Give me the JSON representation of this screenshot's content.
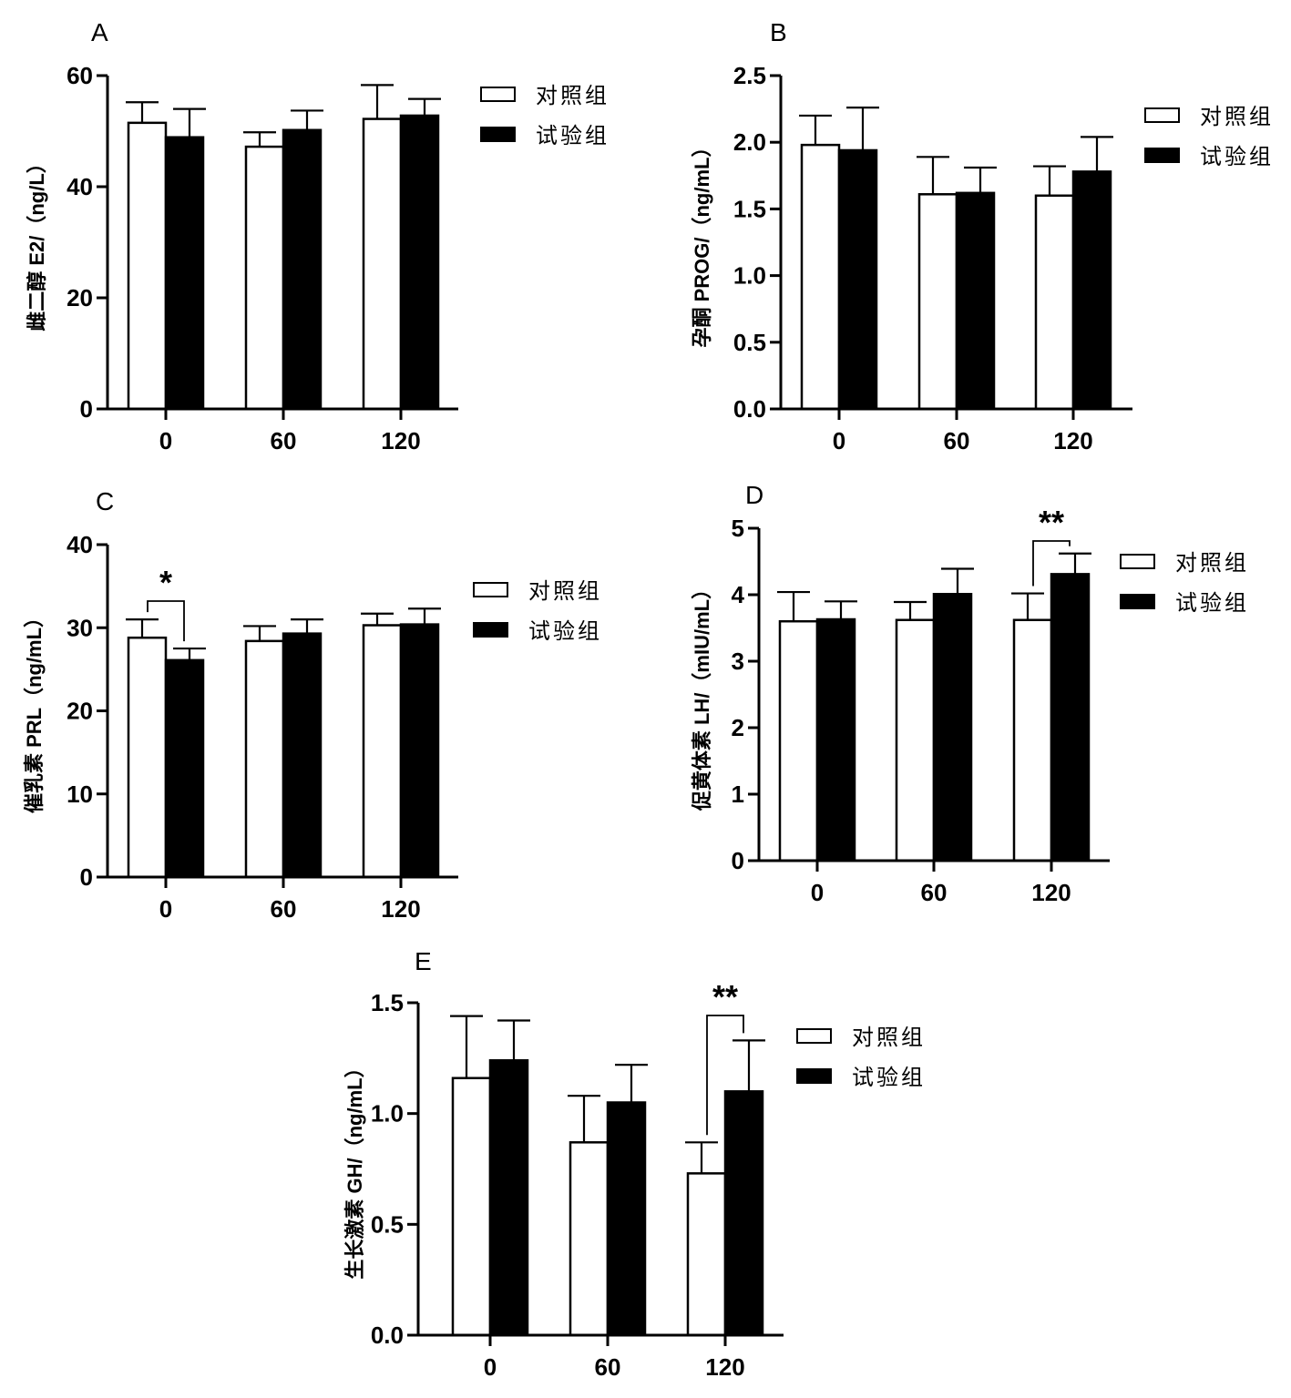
{
  "figure": {
    "legend_labels": [
      "对照组",
      "试验组"
    ]
  },
  "chart_data": [
    {
      "panel": "A",
      "type": "bar",
      "categories": [
        "0",
        "60",
        "120"
      ],
      "ylabel": "雌二醇 E2/（ng/L）",
      "ylim": [
        0,
        60
      ],
      "yticks": [
        "0",
        "20",
        "40",
        "60"
      ],
      "grid": false,
      "legend_position": "top-right",
      "series": [
        {
          "name": "对照组",
          "values": [
            51.5,
            47.2,
            52.2
          ],
          "errors": [
            3.7,
            2.6,
            6.1
          ],
          "color": "#ffffff"
        },
        {
          "name": "试验组",
          "values": [
            48.9,
            50.2,
            52.8
          ],
          "errors": [
            5.1,
            3.5,
            3.0
          ],
          "color": "#000000"
        }
      ],
      "significance": []
    },
    {
      "panel": "B",
      "type": "bar",
      "categories": [
        "0",
        "60",
        "120"
      ],
      "ylabel": "孕酮 PROG/（ng/mL）",
      "ylim": [
        0,
        2.5
      ],
      "yticks": [
        "0.0",
        "0.5",
        "1.0",
        "1.5",
        "2.0",
        "2.5"
      ],
      "grid": false,
      "legend_position": "top-right",
      "series": [
        {
          "name": "对照组",
          "values": [
            1.98,
            1.61,
            1.6
          ],
          "errors": [
            0.22,
            0.28,
            0.22
          ],
          "color": "#ffffff"
        },
        {
          "name": "试验组",
          "values": [
            1.94,
            1.62,
            1.78
          ],
          "errors": [
            0.32,
            0.19,
            0.26
          ],
          "color": "#000000"
        }
      ],
      "significance": []
    },
    {
      "panel": "C",
      "type": "bar",
      "categories": [
        "0",
        "60",
        "120"
      ],
      "ylabel": "催乳素 PRL（ng/mL）",
      "ylim": [
        0,
        40
      ],
      "yticks": [
        "0",
        "10",
        "20",
        "30",
        "40"
      ],
      "grid": false,
      "legend_position": "top-right",
      "series": [
        {
          "name": "对照组",
          "values": [
            28.8,
            28.4,
            30.3
          ],
          "errors": [
            2.2,
            1.8,
            1.4
          ],
          "color": "#ffffff"
        },
        {
          "name": "试验组",
          "values": [
            26.1,
            29.3,
            30.4
          ],
          "errors": [
            1.4,
            1.7,
            1.9
          ],
          "color": "#000000"
        }
      ],
      "significance": [
        {
          "category": "0",
          "label": "*"
        }
      ]
    },
    {
      "panel": "D",
      "type": "bar",
      "categories": [
        "0",
        "60",
        "120"
      ],
      "ylabel": "促黄体素 LH/（mIU/mL）",
      "ylim": [
        0,
        5
      ],
      "yticks": [
        "0",
        "1",
        "2",
        "3",
        "4",
        "5"
      ],
      "grid": false,
      "legend_position": "top-right",
      "series": [
        {
          "name": "对照组",
          "values": [
            3.6,
            3.62,
            3.62
          ],
          "errors": [
            0.44,
            0.27,
            0.4
          ],
          "color": "#ffffff"
        },
        {
          "name": "试验组",
          "values": [
            3.63,
            4.01,
            4.31
          ],
          "errors": [
            0.27,
            0.38,
            0.31
          ],
          "color": "#000000"
        }
      ],
      "significance": [
        {
          "category": "120",
          "label": "**"
        }
      ]
    },
    {
      "panel": "E",
      "type": "bar",
      "categories": [
        "0",
        "60",
        "120"
      ],
      "ylabel": "生长激素 GH/（ng/mL）",
      "ylim": [
        0,
        1.5
      ],
      "yticks": [
        "0.0",
        "0.5",
        "1.0",
        "1.5"
      ],
      "grid": false,
      "legend_position": "top-right",
      "series": [
        {
          "name": "对照组",
          "values": [
            1.16,
            0.87,
            0.73
          ],
          "errors": [
            0.28,
            0.21,
            0.14
          ],
          "color": "#ffffff"
        },
        {
          "name": "试验组",
          "values": [
            1.24,
            1.05,
            1.1
          ],
          "errors": [
            0.18,
            0.17,
            0.23
          ],
          "color": "#000000"
        }
      ],
      "significance": [
        {
          "category": "120",
          "label": "**"
        }
      ]
    }
  ]
}
